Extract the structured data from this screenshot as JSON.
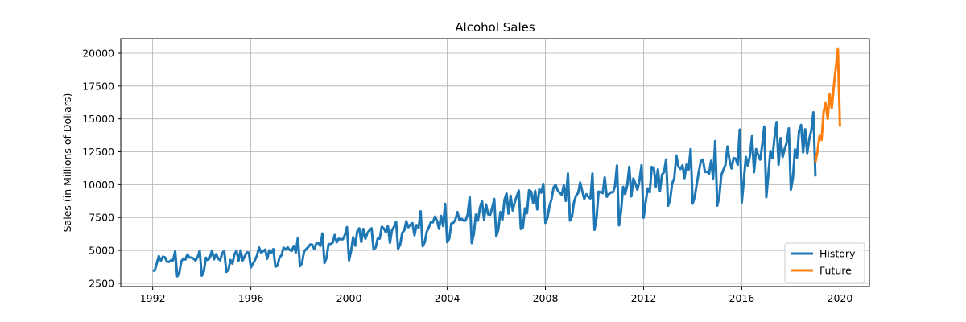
{
  "chart_data": {
    "type": "line",
    "title": "Alcohol Sales",
    "xlabel": "",
    "ylabel": "Sales (in Millions of Dollars)",
    "xlim": [
      1990.7,
      2021.2
    ],
    "ylim": [
      2250,
      21100
    ],
    "x_ticks": [
      1992,
      1996,
      2000,
      2004,
      2008,
      2012,
      2016,
      2020
    ],
    "y_ticks": [
      2500,
      5000,
      7500,
      10000,
      12500,
      15000,
      17500,
      20000
    ],
    "grid": true,
    "legend_position": "bottom-right",
    "series": [
      {
        "name": "History",
        "color": "#1f77b4",
        "start_year": 1992,
        "step": "monthly",
        "values": [
          3459,
          3458,
          4002,
          4564,
          4221,
          4529,
          4466,
          4137,
          4126,
          4259,
          4240,
          4936,
          3031,
          3261,
          4160,
          4377,
          4307,
          4696,
          4458,
          4457,
          4364,
          4236,
          4500,
          4974,
          3075,
          3377,
          4443,
          4261,
          4460,
          4985,
          4324,
          4719,
          4374,
          4248,
          4784,
          4971,
          3370,
          3484,
          4269,
          3994,
          4715,
          4974,
          4223,
          5000,
          4235,
          4554,
          4851,
          4826,
          3699,
          3983,
          4262,
          4619,
          5219,
          4836,
          4941,
          5062,
          4365,
          5012,
          4850,
          5097,
          3758,
          3825,
          4454,
          4635,
          5210,
          5057,
          5231,
          5034,
          4970,
          5342,
          4831,
          5965,
          3796,
          4019,
          4898,
          5090,
          5237,
          5447,
          5435,
          5107,
          5515,
          5583,
          5346,
          6286,
          4032,
          4435,
          5479,
          5483,
          5587,
          6176,
          5621,
          5889,
          5828,
          5849,
          6180,
          6771,
          4243,
          4952,
          6008,
          5353,
          6435,
          6673,
          5636,
          6630,
          5887,
          6322,
          6520,
          6678,
          5082,
          5216,
          5893,
          5894,
          6799,
          6667,
          6374,
          6840,
          5575,
          6545,
          6789,
          7180,
          5117,
          5442,
          6337,
          6525,
          7216,
          6761,
          6958,
          7070,
          6148,
          6924,
          6716,
          7975,
          5326,
          5609,
          6414,
          6741,
          7144,
          7133,
          7568,
          7266,
          6634,
          7626,
          6843,
          8540,
          5629,
          5898,
          7045,
          7094,
          7333,
          7918,
          7289,
          7396,
          7259,
          7268,
          7731,
          9058,
          5557,
          6237,
          7723,
          7262,
          8241,
          8757,
          7352,
          8496,
          7741,
          7710,
          8247,
          8902,
          6066,
          6590,
          7923,
          7335,
          8843,
          9327,
          7792,
          9156,
          8037,
          8640,
          9128,
          9545,
          6627,
          6743,
          8195,
          7828,
          9570,
          9484,
          8608,
          9543,
          8123,
          9649,
          9390,
          10065,
          7093,
          7483,
          8365,
          8895,
          9794,
          9977,
          9553,
          9375,
          9225,
          9948,
          8758,
          10839,
          7266,
          7578,
          8688,
          9162,
          9369,
          10167,
          9507,
          8923,
          9272,
          9075,
          8949,
          10843,
          6558,
          7481,
          9475,
          9424,
          9351,
          10552,
          9077,
          9273,
          9420,
          9413,
          9866,
          11455,
          6901,
          8014,
          9832,
          9281,
          9967,
          11344,
          9106,
          10469,
          10085,
          9612,
          10328,
          11483,
          7486,
          8641,
          9709,
          9423,
          11342,
          11274,
          9845,
          11163,
          9532,
          10754,
          10953,
          11922,
          8395,
          8888,
          10110,
          10493,
          12218,
          11385,
          11186,
          11462,
          10494,
          11540,
          11138,
          12709,
          8557,
          9059,
          10055,
          10977,
          11792,
          11904,
          10965,
          10981,
          10828,
          11817,
          10470,
          13310,
          8400,
          9062,
          10722,
          11107,
          11508,
          12904,
          11869,
          11224,
          12022,
          11983,
          11506,
          14183,
          8648,
          10321,
          12107,
          11420,
          12238,
          13681,
          10950,
          12700,
          12272,
          11905,
          13016,
          14421,
          9043,
          10794,
          12567,
          12004,
          13579,
          14760,
          11511,
          13542,
          12107,
          12746,
          13195,
          14283,
          9616,
          10491,
          12681,
          12048,
          14121,
          14544,
          12458,
          14208,
          12393,
          13470,
          14143,
          15502,
          10622
        ]
      },
      {
        "name": "Future",
        "color": "#ff7f0e",
        "start_year": 2019,
        "step": "monthly",
        "values": [
          11700,
          12500,
          13700,
          13400,
          15500,
          16200,
          15000,
          16900,
          15800,
          17500,
          18900,
          20300,
          14400
        ]
      }
    ]
  }
}
